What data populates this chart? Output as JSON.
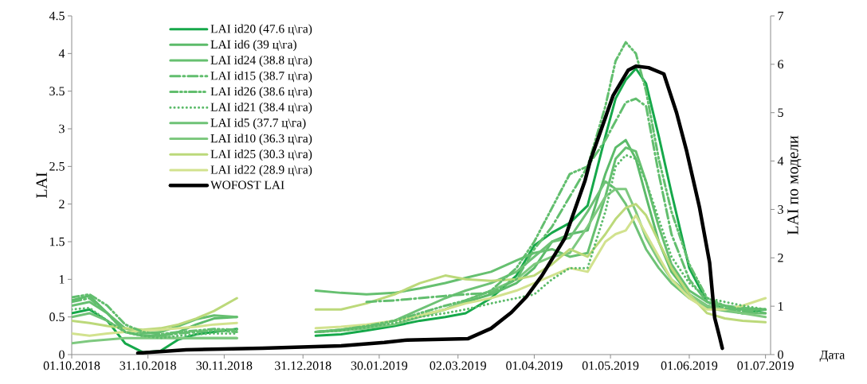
{
  "chart_data": {
    "type": "line",
    "xlabel": "Дата",
    "ylabel": "LAI",
    "y2label": "LAI по модели",
    "legend": "top left",
    "marker": "none",
    "x": [
      "2018-10-01",
      "2018-10-08",
      "2018-10-15",
      "2018-10-22",
      "2018-10-29",
      "2018-11-05",
      "2018-11-12",
      "2018-11-19",
      "2018-11-26",
      "2018-12-05",
      "2018-12-20",
      "2019-01-05",
      "2019-01-15",
      "2019-01-25",
      "2019-02-05",
      "2019-02-15",
      "2019-02-25",
      "2019-03-05",
      "2019-03-15",
      "2019-03-25",
      "2019-04-01",
      "2019-04-08",
      "2019-04-15",
      "2019-04-22",
      "2019-04-29",
      "2019-05-03",
      "2019-05-07",
      "2019-05-11",
      "2019-05-15",
      "2019-05-20",
      "2019-05-25",
      "2019-06-01",
      "2019-06-08",
      "2019-06-15",
      "2019-06-22",
      "2019-07-01"
    ],
    "xlim": [
      "2018-10-01",
      "2019-07-03"
    ],
    "xticks": [
      {
        "value": "2018-10-01",
        "label": "01.10.2018"
      },
      {
        "value": "2018-10-31",
        "label": "31.10.2018"
      },
      {
        "value": "2018-11-30",
        "label": "30.11.2018"
      },
      {
        "value": "2018-12-31",
        "label": "31.12.2018"
      },
      {
        "value": "2019-01-30",
        "label": "30.01.2019"
      },
      {
        "value": "2019-03-02",
        "label": "02.03.2019"
      },
      {
        "value": "2019-04-01",
        "label": "01.04.2019"
      },
      {
        "value": "2019-05-01",
        "label": "01.05.2019"
      },
      {
        "value": "2019-06-01",
        "label": "01.06.2019"
      },
      {
        "value": "2019-07-01",
        "label": "01.07.2019"
      }
    ],
    "ylim": [
      0,
      4.5
    ],
    "yticks": [
      0,
      0.5,
      1,
      1.5,
      2,
      2.5,
      3,
      3.5,
      4,
      4.5
    ],
    "y2lim": [
      0,
      7
    ],
    "y2ticks": [
      0,
      1,
      2,
      3,
      4,
      5,
      6,
      7
    ],
    "series": [
      {
        "name": "LAI id20 (47.6 ц\\га)",
        "color": "#16a84a",
        "line_style": "solid",
        "values": [
          0.55,
          0.6,
          0.45,
          0.15,
          0.03,
          0.05,
          0.2,
          0.27,
          0.3,
          0.34,
          null,
          0.25,
          0.27,
          0.32,
          0.38,
          0.45,
          0.5,
          0.55,
          0.75,
          1.05,
          1.45,
          1.62,
          1.75,
          1.98,
          2.9,
          3.4,
          3.65,
          3.8,
          3.6,
          2.9,
          2.15,
          1.15,
          0.7,
          0.6,
          0.55,
          0.6
        ]
      },
      {
        "name": "LAI id6 (39 ц\\га)",
        "color": "#5cbb6a",
        "line_style": "solid",
        "values": [
          0.72,
          0.78,
          0.55,
          0.3,
          0.25,
          0.25,
          0.3,
          0.4,
          0.48,
          0.5,
          null,
          0.3,
          0.33,
          0.38,
          0.45,
          0.52,
          0.6,
          0.7,
          0.8,
          0.95,
          1.15,
          1.5,
          1.6,
          1.65,
          2.4,
          2.75,
          2.85,
          2.6,
          2.1,
          1.5,
          1.1,
          0.8,
          0.65,
          0.6,
          0.6,
          0.6
        ]
      },
      {
        "name": "LAI id24 (38.8 ц\\га)",
        "color": "#66c070",
        "line_style": "solid",
        "values": [
          0.65,
          0.7,
          0.55,
          0.35,
          0.28,
          0.3,
          0.38,
          0.47,
          0.52,
          0.5,
          null,
          0.85,
          0.82,
          0.8,
          0.82,
          0.88,
          0.95,
          1.02,
          1.1,
          1.25,
          1.35,
          1.4,
          1.3,
          1.35,
          2.1,
          2.6,
          2.75,
          2.7,
          2.3,
          1.7,
          1.2,
          0.85,
          0.7,
          0.65,
          0.62,
          0.6
        ]
      },
      {
        "name": "LAI id15 (38.7 ц\\га)",
        "color": "#62be6e",
        "line_style": "dashdot",
        "values": [
          0.7,
          0.75,
          0.55,
          0.3,
          0.25,
          0.25,
          0.28,
          0.3,
          0.32,
          0.3,
          null,
          null,
          null,
          0.7,
          0.72,
          0.75,
          0.78,
          0.8,
          0.82,
          1.0,
          1.4,
          1.7,
          2.1,
          2.5,
          2.85,
          3.1,
          3.35,
          3.4,
          3.3,
          2.4,
          1.6,
          1.0,
          0.7,
          0.62,
          0.58,
          0.55
        ]
      },
      {
        "name": "LAI id26 (38.6 ц\\га)",
        "color": "#62be6e",
        "line_style": "dashdotdot",
        "values": [
          0.76,
          0.8,
          0.65,
          0.4,
          0.3,
          0.27,
          0.3,
          0.32,
          0.34,
          0.33,
          null,
          0.3,
          0.33,
          0.38,
          0.45,
          0.55,
          0.65,
          0.72,
          0.85,
          1.15,
          1.5,
          1.95,
          2.4,
          2.5,
          3.3,
          3.9,
          4.15,
          4.0,
          3.5,
          2.6,
          1.9,
          1.2,
          0.75,
          0.65,
          0.6,
          0.6
        ]
      },
      {
        "name": "LAI id21 (38.4 ц\\га)",
        "color": "#5cbb6a",
        "line_style": "dotted",
        "values": [
          0.6,
          0.62,
          0.45,
          0.3,
          0.25,
          0.22,
          0.25,
          0.27,
          0.28,
          0.28,
          null,
          0.3,
          0.32,
          0.36,
          0.42,
          0.5,
          0.55,
          0.6,
          0.68,
          0.75,
          0.8,
          1.0,
          1.15,
          1.15,
          1.9,
          2.5,
          2.65,
          2.6,
          2.3,
          1.8,
          1.3,
          0.95,
          0.75,
          0.7,
          0.65,
          0.6
        ]
      },
      {
        "name": "LAI id5 (37.7 ц\\га)",
        "color": "#6ec276",
        "line_style": "solid",
        "values": [
          0.5,
          0.55,
          0.45,
          0.3,
          0.25,
          0.23,
          0.22,
          0.22,
          0.22,
          0.22,
          null,
          0.3,
          0.32,
          0.35,
          0.45,
          0.6,
          0.75,
          0.85,
          0.95,
          1.1,
          1.3,
          1.5,
          1.55,
          1.9,
          2.3,
          2.2,
          2.0,
          1.7,
          1.4,
          1.15,
          0.95,
          0.75,
          0.62,
          0.58,
          0.55,
          0.55
        ]
      },
      {
        "name": "LAI id10 (36.3 ц\\га)",
        "color": "#7ec97f",
        "line_style": "solid",
        "values": [
          0.15,
          0.18,
          0.2,
          0.22,
          0.22,
          0.22,
          0.22,
          0.22,
          0.22,
          0.22,
          null,
          0.3,
          0.32,
          0.35,
          0.4,
          0.5,
          0.6,
          0.72,
          0.85,
          1.0,
          1.2,
          1.3,
          1.35,
          1.7,
          2.1,
          2.2,
          2.2,
          1.9,
          1.55,
          1.25,
          1.0,
          0.8,
          0.65,
          0.6,
          0.55,
          0.5
        ]
      },
      {
        "name": "LAI id25 (30.3 ц\\га)",
        "color": "#bcd97a",
        "line_style": "solid",
        "values": [
          0.45,
          0.42,
          0.38,
          0.35,
          0.33,
          0.35,
          0.4,
          0.48,
          0.58,
          0.75,
          null,
          0.6,
          0.6,
          0.68,
          0.8,
          0.95,
          1.05,
          1.0,
          0.98,
          1.0,
          1.05,
          1.2,
          1.4,
          1.3,
          1.6,
          1.8,
          1.95,
          2.0,
          1.85,
          1.5,
          1.15,
          0.8,
          0.55,
          0.48,
          0.45,
          0.43
        ]
      },
      {
        "name": "LAI id22 (28.9 ц\\га)",
        "color": "#d2e28e",
        "line_style": "solid",
        "values": [
          0.28,
          0.25,
          0.28,
          0.3,
          0.32,
          0.33,
          0.35,
          0.37,
          0.4,
          0.42,
          null,
          0.35,
          0.37,
          0.4,
          0.45,
          0.52,
          0.6,
          0.68,
          0.75,
          0.85,
          0.95,
          1.05,
          1.15,
          1.1,
          1.5,
          1.6,
          1.65,
          1.85,
          1.6,
          1.3,
          1.0,
          0.75,
          0.6,
          0.6,
          0.65,
          0.75
        ]
      },
      {
        "name": "WOFOST LAI",
        "color": "#000000",
        "line_style": "solid",
        "axis": "y2",
        "x": [
          "2018-10-27",
          "2018-11-15",
          "2018-12-15",
          "2019-01-15",
          "2019-02-01",
          "2019-02-10",
          "2019-03-06",
          "2019-03-15",
          "2019-03-23",
          "2019-03-29",
          "2019-04-04",
          "2019-04-13",
          "2019-04-21",
          "2019-04-23",
          "2019-05-02",
          "2019-05-08",
          "2019-05-11",
          "2019-05-16",
          "2019-05-22",
          "2019-05-27",
          "2019-05-31",
          "2019-06-05",
          "2019-06-09",
          "2019-06-11",
          "2019-06-13",
          "2019-06-14"
        ],
        "values": [
          0.03,
          0.1,
          0.13,
          0.18,
          0.25,
          0.3,
          0.33,
          0.54,
          0.87,
          1.2,
          1.63,
          2.4,
          3.6,
          4.0,
          5.35,
          5.88,
          5.96,
          5.93,
          5.8,
          5.0,
          4.2,
          3.05,
          1.9,
          0.76,
          0.35,
          0.13
        ]
      }
    ]
  }
}
